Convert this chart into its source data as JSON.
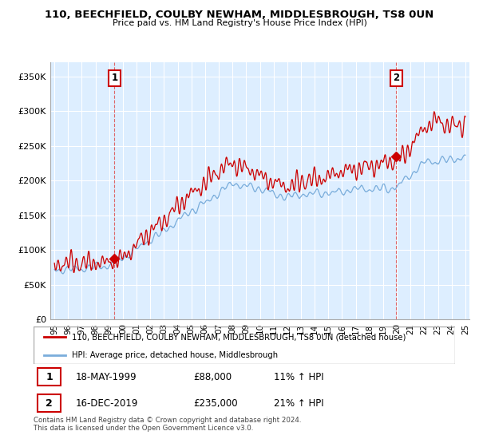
{
  "title1": "110, BEECHFIELD, COULBY NEWHAM, MIDDLESBROUGH, TS8 0UN",
  "title2": "Price paid vs. HM Land Registry's House Price Index (HPI)",
  "legend_line1": "110, BEECHFIELD, COULBY NEWHAM, MIDDLESBROUGH, TS8 0UN (detached house)",
  "legend_line2": "HPI: Average price, detached house, Middlesbrough",
  "annotation1_date": "18-MAY-1999",
  "annotation1_price": "£88,000",
  "annotation1_hpi": "11% ↑ HPI",
  "annotation2_date": "16-DEC-2019",
  "annotation2_price": "£235,000",
  "annotation2_hpi": "21% ↑ HPI",
  "footer": "Contains HM Land Registry data © Crown copyright and database right 2024.\nThis data is licensed under the Open Government Licence v3.0.",
  "ylim": [
    0,
    370000
  ],
  "yticks": [
    0,
    50000,
    100000,
    150000,
    200000,
    250000,
    300000,
    350000
  ],
  "ytick_labels": [
    "£0",
    "£50K",
    "£100K",
    "£150K",
    "£200K",
    "£250K",
    "£300K",
    "£350K"
  ],
  "line1_color": "#cc0000",
  "line2_color": "#7aaddb",
  "bg_color": "#ddeeff",
  "marker1_x": 1999.38,
  "marker1_y": 88000,
  "marker2_x": 2019.96,
  "marker2_y": 235000,
  "vline1_x": 1999.38,
  "vline2_x": 2019.96,
  "xlim": [
    1994.7,
    2025.3
  ],
  "xlabel_years": [
    1995,
    1996,
    1997,
    1998,
    1999,
    2000,
    2001,
    2002,
    2003,
    2004,
    2005,
    2006,
    2007,
    2008,
    2009,
    2010,
    2011,
    2012,
    2013,
    2014,
    2015,
    2016,
    2017,
    2018,
    2019,
    2020,
    2021,
    2022,
    2023,
    2024,
    2025
  ],
  "xlabel_labels": [
    "95",
    "96",
    "97",
    "98",
    "99",
    "00",
    "01",
    "02",
    "03",
    "04",
    "05",
    "06",
    "07",
    "08",
    "09",
    "10",
    "11",
    "12",
    "13",
    "14",
    "15",
    "16",
    "17",
    "18",
    "19",
    "20",
    "21",
    "22",
    "23",
    "24",
    "25"
  ]
}
